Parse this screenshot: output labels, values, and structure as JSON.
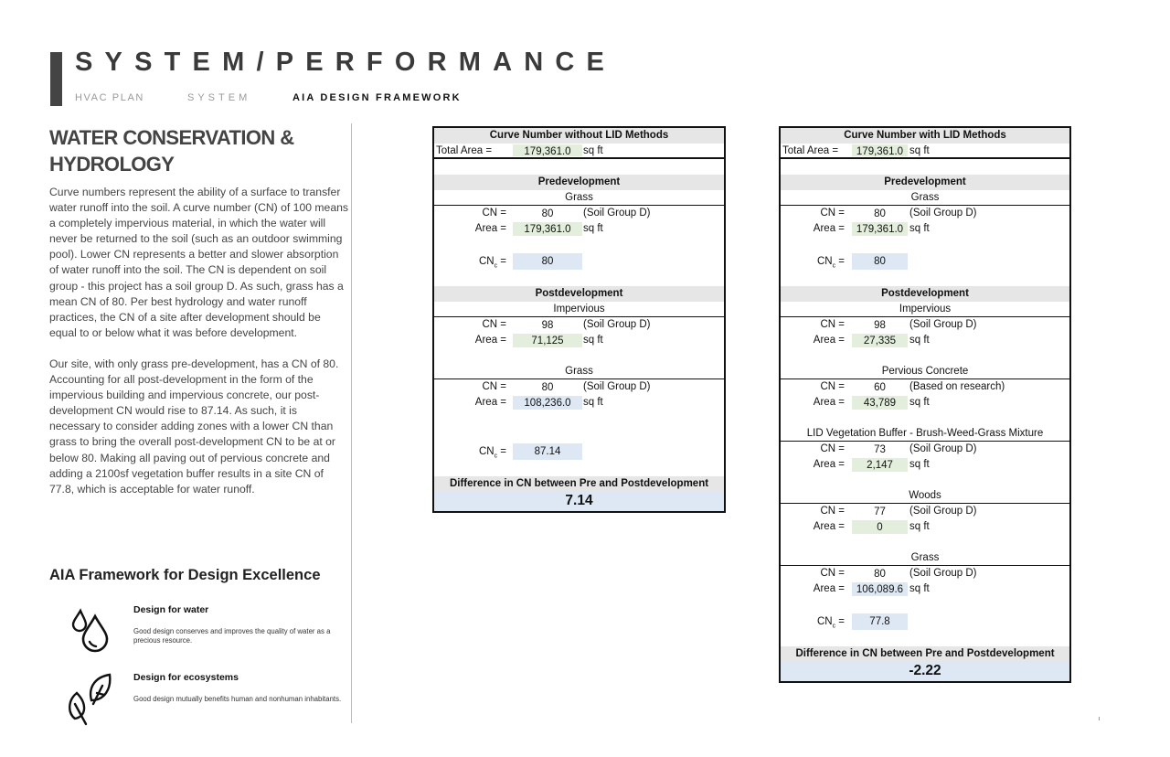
{
  "header": {
    "title": "SYSTEM/PERFORMANCE",
    "nav": [
      "HVAC PLAN",
      "SYSTEM",
      "AIA DESIGN FRAMEWORK"
    ]
  },
  "left": {
    "heading": "WATER CONSERVATION & HYDROLOGY",
    "paragraphs": [
      "Curve numbers represent the ability of a surface to transfer water runoff into the soil.  A curve number (CN) of 100 means a completely impervious material, in which the water will never be returned to the soil (such as an outdoor swimming pool).  Lower CN represents a better and slower absorption of water runoff into the soil.  The CN is dependent on soil group - this project has a soil group D.  As such, grass has a mean CN of 80.  Per best hydrology and water runoff practices, the CN of a site after development should be equal to or below what it was before development.",
      "Our site, with only grass pre-development, has a CN of 80.  Accounting for all post-development in the form of the impervious building and impervious concrete, our post-development CN would rise to 87.14.  As such, it is necessary to consider adding zones with a lower CN than grass to bring the overall post-development CN to be at or below 80.  Making all paving out of pervious concrete and adding a 2100sf vegetation buffer results in a site CN of 77.8, which is acceptable for water runoff."
    ],
    "aia_title": "AIA Framework for Design Excellence",
    "frameworks": [
      {
        "title": "Design for water",
        "desc": "Good design conserves and improves the quality of water as a precious resource.",
        "icon": "water-drops-icon"
      },
      {
        "title": "Design for ecosystems",
        "desc": "Good design mutually benefits human and nonhuman inhabitants.",
        "icon": "leaves-icon"
      }
    ]
  },
  "colors": {
    "input_green": "#e3efdc",
    "calc_blue": "#dde8f4",
    "header_gray": "#e6e6e6"
  },
  "tables": [
    {
      "rows": [
        {
          "kind": "hdr",
          "text": "Curve Number without LID Methods"
        },
        {
          "kind": "total",
          "label": "Total Area =",
          "value": "179,361.0",
          "unit": "sq ft",
          "fill": "green"
        },
        {
          "kind": "blank"
        },
        {
          "kind": "hdr",
          "text": "Predevelopment"
        },
        {
          "kind": "sub",
          "text": "Grass"
        },
        {
          "kind": "kv",
          "label": "CN =",
          "value": "80",
          "unit": "(Soil Group D)"
        },
        {
          "kind": "kv",
          "label": "Area =",
          "value": "179,361.0",
          "unit": "sq ft",
          "fill": "green"
        },
        {
          "kind": "blank"
        },
        {
          "kind": "cnc",
          "label": "CN",
          "sub": "c",
          "value": "80",
          "fill": "blue"
        },
        {
          "kind": "blank"
        },
        {
          "kind": "hdr",
          "text": "Postdevelopment"
        },
        {
          "kind": "sub",
          "text": "Impervious"
        },
        {
          "kind": "kv",
          "label": "CN =",
          "value": "98",
          "unit": "(Soil Group D)"
        },
        {
          "kind": "kv",
          "label": "Area =",
          "value": "71,125",
          "unit": "sq ft",
          "fill": "green"
        },
        {
          "kind": "blank"
        },
        {
          "kind": "sub",
          "text": "Grass"
        },
        {
          "kind": "kv",
          "label": "CN =",
          "value": "80",
          "unit": "(Soil Group D)"
        },
        {
          "kind": "kv",
          "label": "Area =",
          "value": "108,236.0",
          "unit": "sq ft",
          "fill": "blue"
        },
        {
          "kind": "blank",
          "tall": true
        },
        {
          "kind": "cnc",
          "label": "CN",
          "sub": "c",
          "value": "87.14",
          "fill": "blue"
        },
        {
          "kind": "blank"
        },
        {
          "kind": "hdr",
          "text": "Difference in CN between Pre and Postdevelopment"
        },
        {
          "kind": "diffval",
          "text": "7.14"
        }
      ]
    },
    {
      "rows": [
        {
          "kind": "hdr",
          "text": "Curve Number with LID Methods"
        },
        {
          "kind": "total",
          "label": "Total Area =",
          "value": "179,361.0",
          "unit": "sq ft",
          "fill": "green"
        },
        {
          "kind": "blank"
        },
        {
          "kind": "hdr",
          "text": "Predevelopment"
        },
        {
          "kind": "sub",
          "text": "Grass"
        },
        {
          "kind": "kv",
          "label": "CN =",
          "value": "80",
          "unit": "(Soil Group D)"
        },
        {
          "kind": "kv",
          "label": "Area =",
          "value": "179,361.0",
          "unit": "sq ft",
          "fill": "green"
        },
        {
          "kind": "blank"
        },
        {
          "kind": "cnc",
          "label": "CN",
          "sub": "c",
          "value": "80",
          "fill": "blue"
        },
        {
          "kind": "blank"
        },
        {
          "kind": "hdr",
          "text": "Postdevelopment"
        },
        {
          "kind": "sub",
          "text": "Impervious"
        },
        {
          "kind": "kv",
          "label": "CN =",
          "value": "98",
          "unit": "(Soil Group D)"
        },
        {
          "kind": "kv",
          "label": "Area =",
          "value": "27,335",
          "unit": "sq ft",
          "fill": "green"
        },
        {
          "kind": "blank"
        },
        {
          "kind": "sub",
          "text": "Pervious Concrete"
        },
        {
          "kind": "kv",
          "label": "CN =",
          "value": "60",
          "unit": "(Based on research)"
        },
        {
          "kind": "kv",
          "label": "Area =",
          "value": "43,789",
          "unit": "sq ft",
          "fill": "green"
        },
        {
          "kind": "blank"
        },
        {
          "kind": "sub",
          "text": "LID Vegetation Buffer - Brush-Weed-Grass Mixture"
        },
        {
          "kind": "kv",
          "label": "CN =",
          "value": "73",
          "unit": "(Soil Group D)"
        },
        {
          "kind": "kv",
          "label": "Area =",
          "value": "2,147",
          "unit": "sq ft",
          "fill": "green"
        },
        {
          "kind": "blank"
        },
        {
          "kind": "sub",
          "text": "Woods"
        },
        {
          "kind": "kv",
          "label": "CN =",
          "value": "77",
          "unit": "(Soil Group D)"
        },
        {
          "kind": "kv",
          "label": "Area =",
          "value": "0",
          "unit": "sq ft",
          "fill": "green"
        },
        {
          "kind": "blank"
        },
        {
          "kind": "sub",
          "text": "Grass"
        },
        {
          "kind": "kv",
          "label": "CN =",
          "value": "80",
          "unit": "(Soil Group D)"
        },
        {
          "kind": "kv",
          "label": "Area =",
          "value": "106,089.6",
          "unit": "sq ft",
          "fill": "blue"
        },
        {
          "kind": "blank"
        },
        {
          "kind": "cnc",
          "label": "CN",
          "sub": "c",
          "value": "77.8",
          "fill": "blue"
        },
        {
          "kind": "blank"
        },
        {
          "kind": "hdr",
          "text": "Difference in CN between Pre and Postdevelopment"
        },
        {
          "kind": "diffval",
          "text": "-2.22"
        }
      ]
    }
  ]
}
